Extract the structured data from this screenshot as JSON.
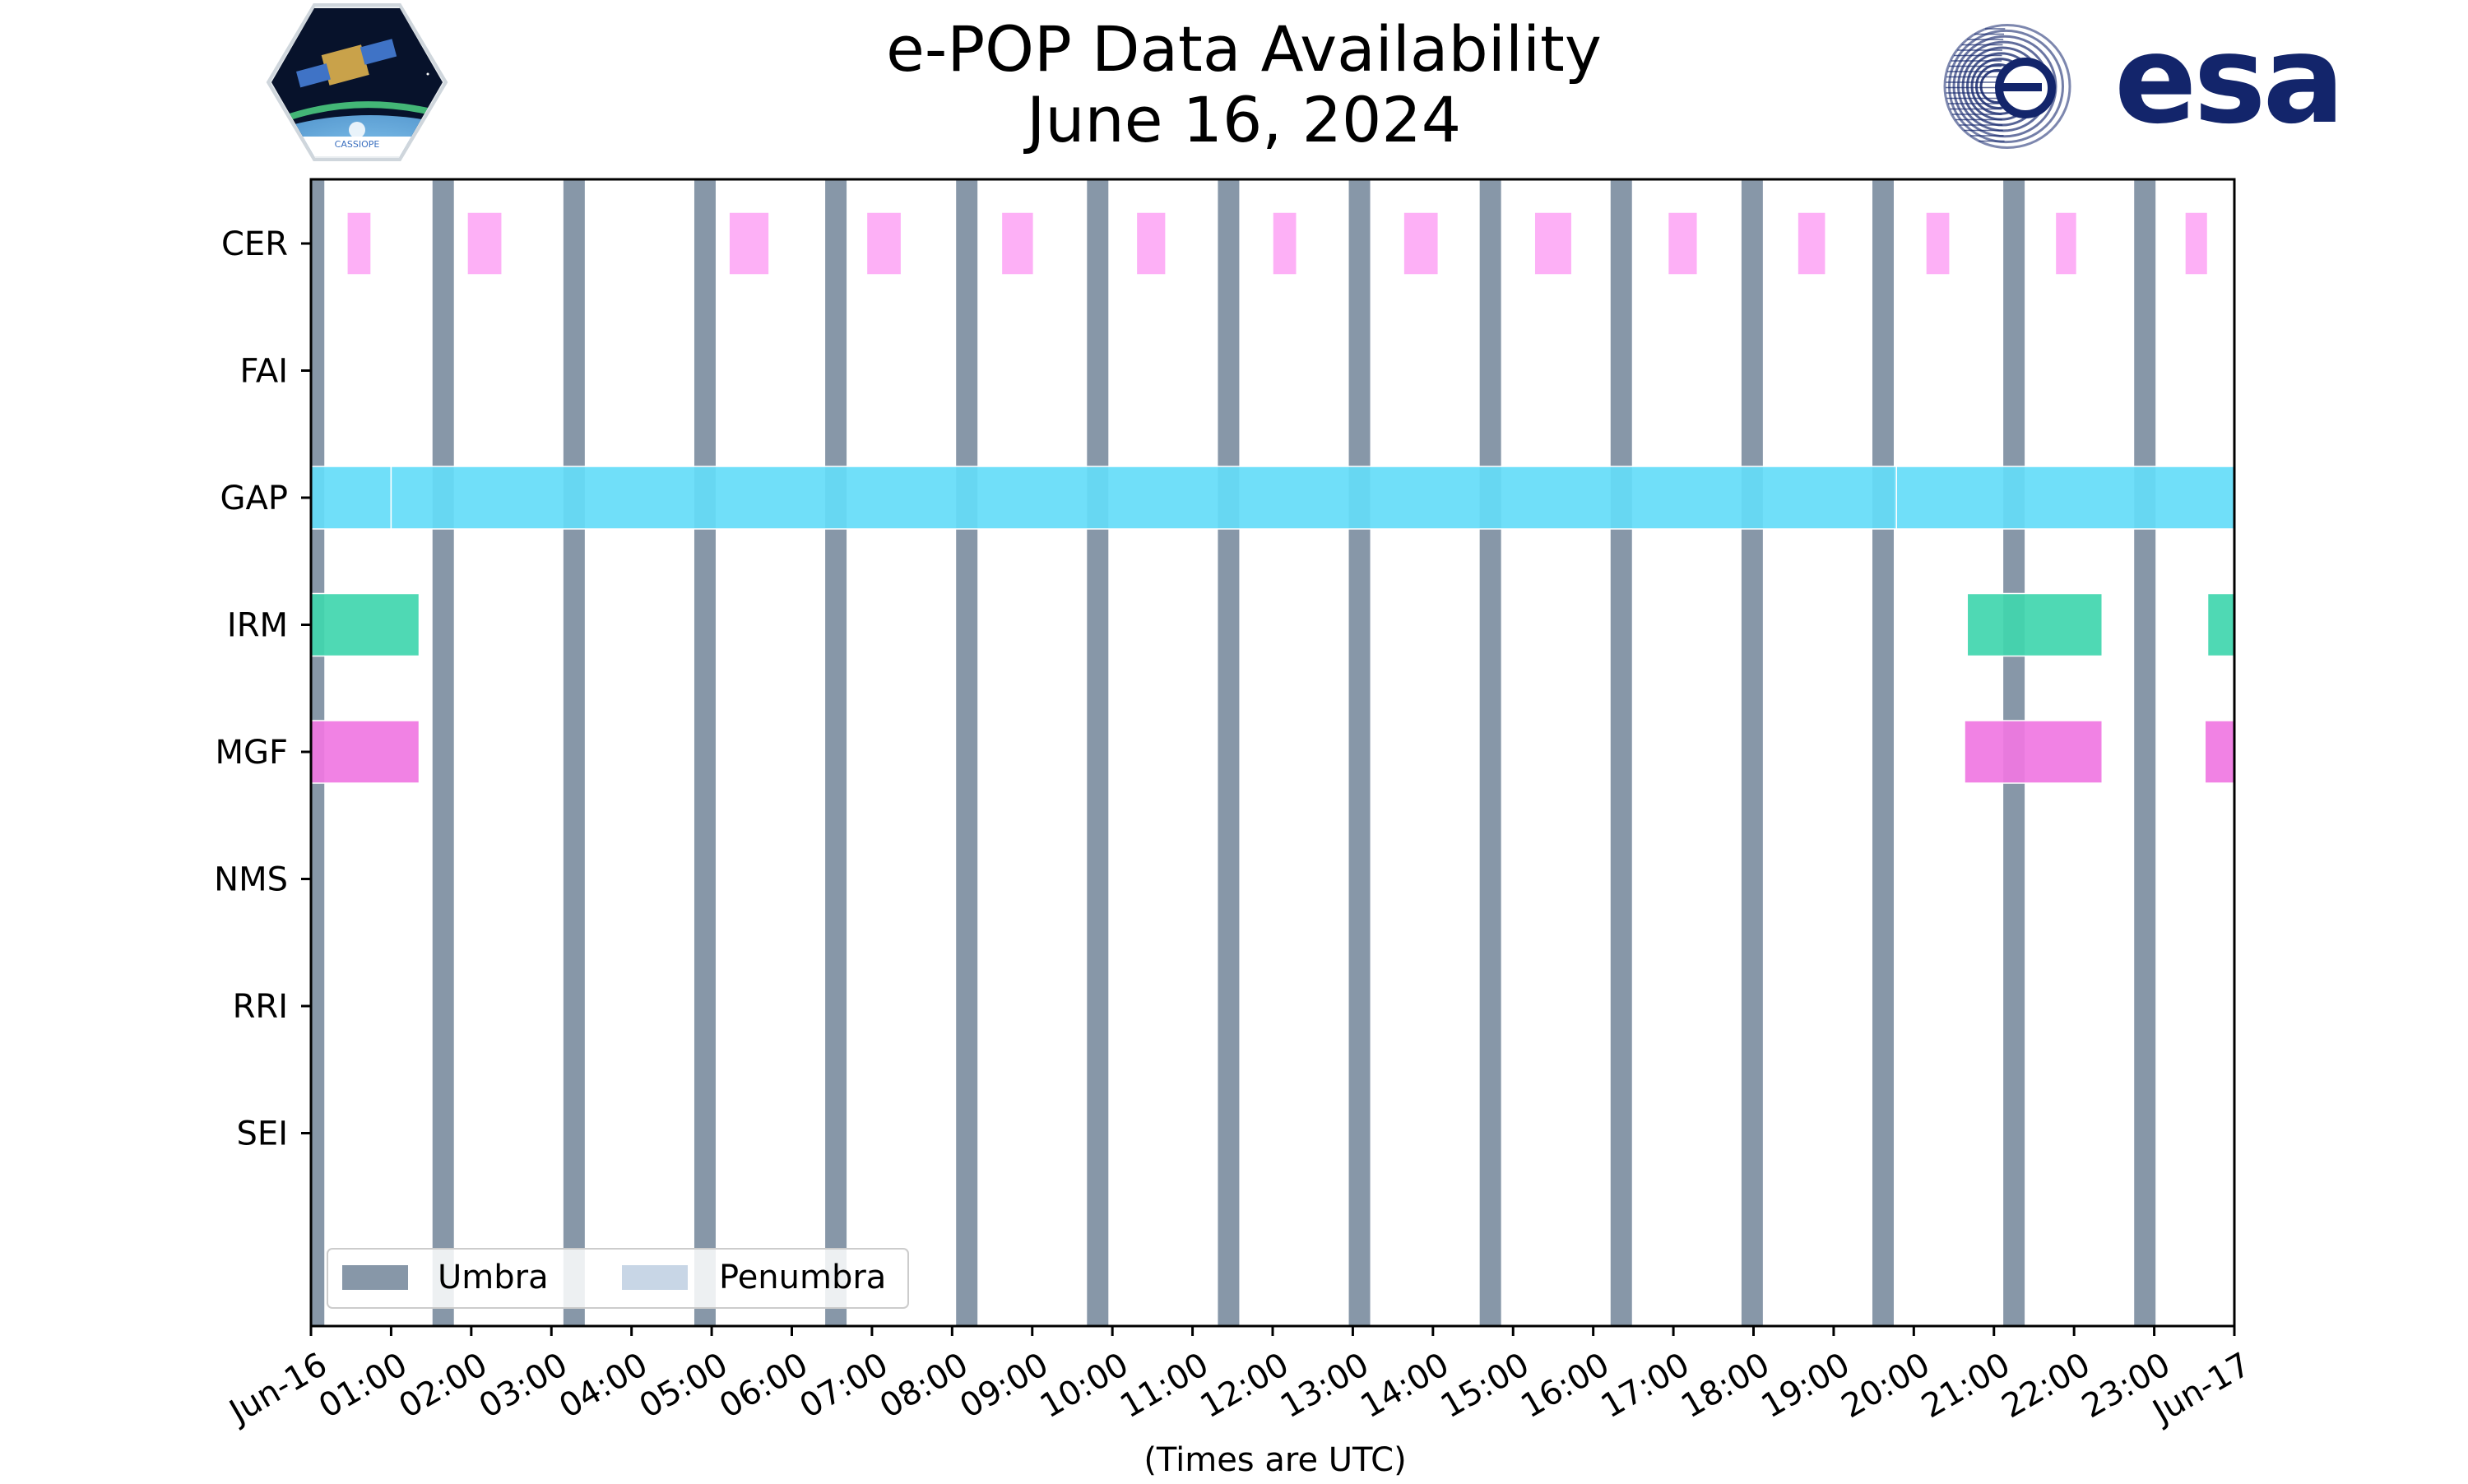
{
  "chart_data": {
    "type": "timeline",
    "title": "e-POP Data Availability",
    "subtitle": "June 16, 2024",
    "xlabel": "(Times are UTC)",
    "x_range": [
      "2024-06-16 00:00",
      "2024-06-17 00:00"
    ],
    "x_tick_labels": [
      "Jun-16",
      "01:00",
      "02:00",
      "03:00",
      "04:00",
      "05:00",
      "06:00",
      "07:00",
      "08:00",
      "09:00",
      "10:00",
      "11:00",
      "12:00",
      "13:00",
      "14:00",
      "15:00",
      "16:00",
      "17:00",
      "18:00",
      "19:00",
      "20:00",
      "21:00",
      "22:00",
      "23:00",
      "Jun-17"
    ],
    "instruments": [
      "CER",
      "FAI",
      "GAP",
      "IRM",
      "MGF",
      "NMS",
      "RRI",
      "SEI"
    ],
    "legend": {
      "placement": "lower-left",
      "entries": [
        {
          "label": "Umbra",
          "color": "#8797a8"
        },
        {
          "label": "Penumbra",
          "color": "#c8d6e6"
        }
      ]
    },
    "umbra_intervals": [
      [
        "00:00",
        "00:10"
      ],
      [
        "01:31",
        "01:47"
      ],
      [
        "03:09",
        "03:25"
      ],
      [
        "04:47",
        "05:03"
      ],
      [
        "06:25",
        "06:41"
      ],
      [
        "08:03",
        "08:19"
      ],
      [
        "09:41",
        "09:57"
      ],
      [
        "11:19",
        "11:35"
      ],
      [
        "12:57",
        "13:13"
      ],
      [
        "14:35",
        "14:51"
      ],
      [
        "16:13",
        "16:29"
      ],
      [
        "17:51",
        "18:07"
      ],
      [
        "19:29",
        "19:45"
      ],
      [
        "21:07",
        "21:23"
      ],
      [
        "22:45",
        "23:01"
      ]
    ],
    "availability": [
      {
        "instrument": "CER",
        "color": "#fda9f5",
        "intervals": [
          [
            "00:27",
            "00:45"
          ],
          [
            "01:57",
            "02:23"
          ],
          [
            "05:13",
            "05:43"
          ],
          [
            "06:56",
            "07:22"
          ],
          [
            "08:37",
            "09:01"
          ],
          [
            "10:18",
            "10:40"
          ],
          [
            "12:00",
            "12:18"
          ],
          [
            "13:38",
            "14:04"
          ],
          [
            "15:16",
            "15:44"
          ],
          [
            "16:56",
            "17:18"
          ],
          [
            "18:33",
            "18:54"
          ],
          [
            "20:09",
            "20:27"
          ],
          [
            "21:46",
            "22:02"
          ],
          [
            "23:23",
            "23:40"
          ]
        ]
      },
      {
        "instrument": "FAI",
        "color": "#aaaaaa",
        "intervals": []
      },
      {
        "instrument": "GAP",
        "color": "#64dcf8",
        "intervals": [
          [
            "00:00",
            "01:00"
          ],
          [
            "01:00",
            "19:47"
          ],
          [
            "19:47",
            "24:00"
          ]
        ]
      },
      {
        "instrument": "IRM",
        "color": "#40d6ae",
        "intervals": [
          [
            "00:00",
            "01:21"
          ],
          [
            "20:40",
            "22:21"
          ],
          [
            "23:40",
            "24:00"
          ]
        ]
      },
      {
        "instrument": "MGF",
        "color": "#f077e2",
        "intervals": [
          [
            "00:00",
            "01:21"
          ],
          [
            "20:38",
            "22:21"
          ],
          [
            "23:38",
            "24:00"
          ]
        ]
      },
      {
        "instrument": "NMS",
        "color": "#aaaaaa",
        "intervals": []
      },
      {
        "instrument": "RRI",
        "color": "#aaaaaa",
        "intervals": []
      },
      {
        "instrument": "SEI",
        "color": "#aaaaaa",
        "intervals": []
      }
    ]
  },
  "logos": {
    "cassiope_label": "CASSIOPE",
    "esa_text": "esa",
    "esa_color": "#13256b"
  }
}
